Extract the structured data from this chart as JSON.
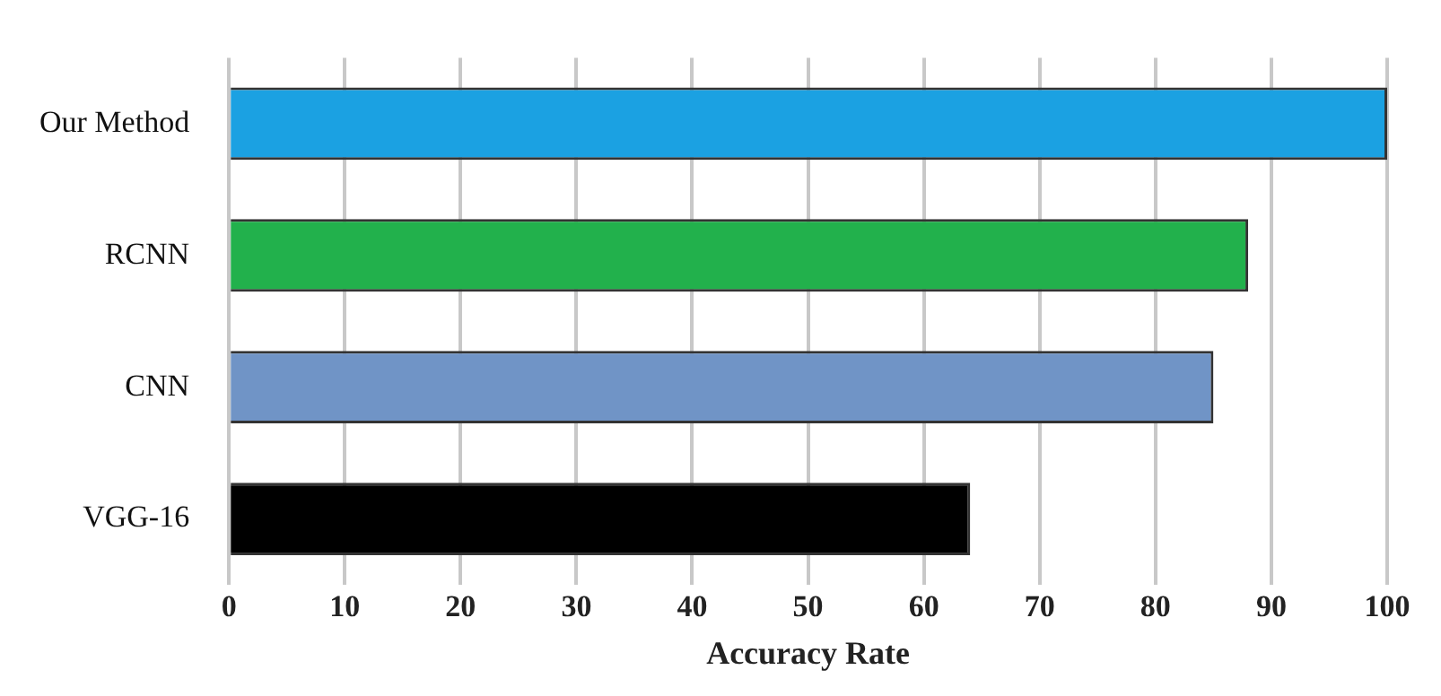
{
  "chart_data": {
    "type": "bar",
    "orientation": "horizontal",
    "xlabel": "Accuracy Rate",
    "categories": [
      "Our Method",
      "RCNN",
      "CNN",
      "VGG-16"
    ],
    "values": [
      100,
      88,
      85,
      64
    ],
    "colors": [
      "#1ba1e2",
      "#22b14c",
      "#7094c6",
      "#000000"
    ],
    "xlim": [
      0,
      100
    ],
    "xticks": [
      0,
      10,
      20,
      30,
      40,
      50,
      60,
      70,
      80,
      90,
      100
    ],
    "grid": "x"
  }
}
